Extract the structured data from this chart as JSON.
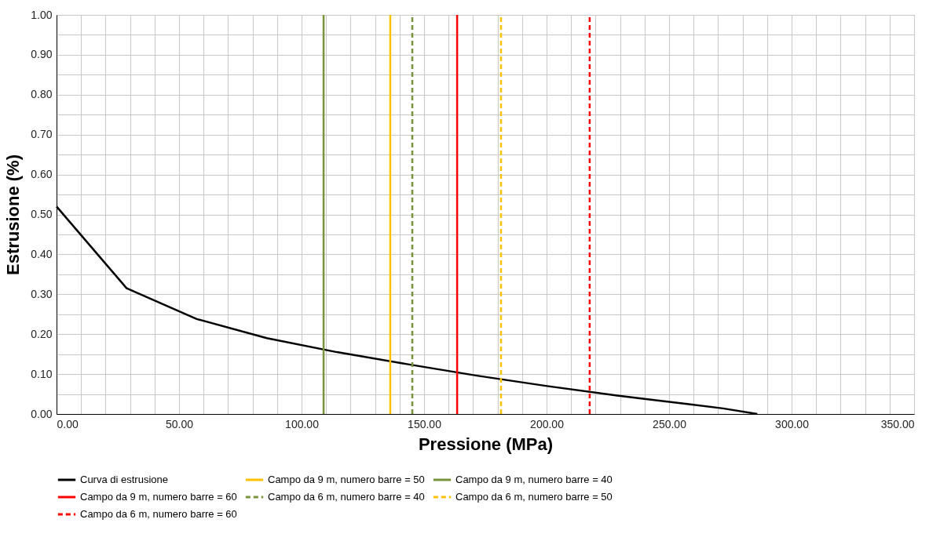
{
  "chart_data": {
    "type": "line",
    "xlabel": "Pressione (MPa)",
    "ylabel": "Estrusione (%)",
    "series": [
      {
        "name": "Curva di estrusione",
        "color": "#000000",
        "x": [
          0,
          28.6,
          57.2,
          85.8,
          114.4,
          143,
          171.6,
          200.2,
          228.8,
          257.4,
          272,
          286
        ],
        "values": [
          0.52,
          0.315,
          0.238,
          0.19,
          0.155,
          0.125,
          0.096,
          0.07,
          0.046,
          0.025,
          0.014,
          0
        ]
      },
      {
        "name": "Campo da 9 m, numero barre = 50",
        "color": "#ffc000",
        "line_style": "solid",
        "x": [
          136.2,
          136.2
        ],
        "values": [
          0,
          1
        ]
      },
      {
        "name": "Campo da 9 m, numero barre = 40",
        "color": "#77933c",
        "line_style": "solid",
        "x": [
          109,
          109
        ],
        "values": [
          0,
          1
        ]
      },
      {
        "name": "Campo da 9 m, numero barre = 60",
        "color": "#ff0000",
        "line_style": "solid",
        "x": [
          163.5,
          163.5
        ],
        "values": [
          0,
          1
        ]
      },
      {
        "name": "Campo da 6 m, numero barre = 40",
        "color": "#77933c",
        "line_style": "dashed",
        "x": [
          145.2,
          145.2
        ],
        "values": [
          0,
          1
        ]
      },
      {
        "name": "Campo da 6 m, numero barre = 50",
        "color": "#ffc000",
        "line_style": "dashed",
        "x": [
          181.4,
          181.4
        ],
        "values": [
          0,
          1
        ]
      },
      {
        "name": "Campo da 6 m, numero barre = 60",
        "color": "#ff0000",
        "line_style": "dashed",
        "x": [
          217.6,
          217.6
        ],
        "values": [
          0,
          1
        ]
      }
    ],
    "xlim": [
      0,
      350
    ],
    "xticks": [
      {
        "value": 0,
        "label": "0.00"
      },
      {
        "value": 10,
        "label": null
      },
      {
        "value": 20,
        "label": null
      },
      {
        "value": 30,
        "label": null
      },
      {
        "value": 40,
        "label": null
      },
      {
        "value": 50,
        "label": "50.00"
      },
      {
        "value": 60,
        "label": null
      },
      {
        "value": 70,
        "label": null
      },
      {
        "value": 80,
        "label": null
      },
      {
        "value": 90,
        "label": null
      },
      {
        "value": 100,
        "label": "100.00"
      },
      {
        "value": 110,
        "label": null
      },
      {
        "value": 120,
        "label": null
      },
      {
        "value": 130,
        "label": null
      },
      {
        "value": 140,
        "label": null
      },
      {
        "value": 150,
        "label": "150.00"
      },
      {
        "value": 160,
        "label": null
      },
      {
        "value": 170,
        "label": null
      },
      {
        "value": 180,
        "label": null
      },
      {
        "value": 190,
        "label": null
      },
      {
        "value": 200,
        "label": "200.00"
      },
      {
        "value": 210,
        "label": null
      },
      {
        "value": 220,
        "label": null
      },
      {
        "value": 230,
        "label": null
      },
      {
        "value": 240,
        "label": null
      },
      {
        "value": 250,
        "label": "250.00"
      },
      {
        "value": 260,
        "label": null
      },
      {
        "value": 270,
        "label": null
      },
      {
        "value": 280,
        "label": null
      },
      {
        "value": 290,
        "label": null
      },
      {
        "value": 300,
        "label": "300.00"
      },
      {
        "value": 310,
        "label": null
      },
      {
        "value": 320,
        "label": null
      },
      {
        "value": 330,
        "label": null
      },
      {
        "value": 340,
        "label": null
      },
      {
        "value": 350,
        "label": "350.00"
      }
    ],
    "ylim": [
      0,
      1
    ],
    "yticks": [
      {
        "value": 0,
        "label": "0.00"
      },
      {
        "value": 0.05,
        "label": null
      },
      {
        "value": 0.1,
        "label": "0.10"
      },
      {
        "value": 0.15,
        "label": null
      },
      {
        "value": 0.2,
        "label": "0.20"
      },
      {
        "value": 0.25,
        "label": null
      },
      {
        "value": 0.3,
        "label": "0.30"
      },
      {
        "value": 0.35,
        "label": null
      },
      {
        "value": 0.4,
        "label": "0.40"
      },
      {
        "value": 0.45,
        "label": null
      },
      {
        "value": 0.5,
        "label": "0.50"
      },
      {
        "value": 0.55,
        "label": null
      },
      {
        "value": 0.6,
        "label": "0.60"
      },
      {
        "value": 0.65,
        "label": null
      },
      {
        "value": 0.7,
        "label": "0.70"
      },
      {
        "value": 0.75,
        "label": null
      },
      {
        "value": 0.8,
        "label": "0.80"
      },
      {
        "value": 0.85,
        "label": null
      },
      {
        "value": 0.9,
        "label": "0.90"
      },
      {
        "value": 0.95,
        "label": null
      },
      {
        "value": 1,
        "label": "1.00"
      }
    ],
    "grid": true,
    "legend": "bottom",
    "line_style": "solid",
    "marker": "none"
  }
}
